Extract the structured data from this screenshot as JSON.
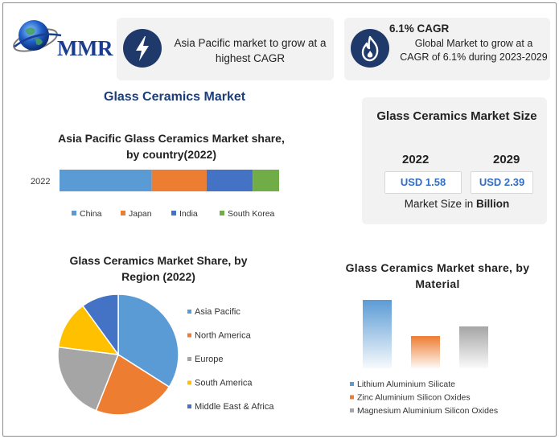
{
  "brand": {
    "logo_text": "MMR"
  },
  "cards": {
    "asia_pacific_text": "Asia Pacific market to grow at a highest CAGR",
    "cagr_title": "6.1% CAGR",
    "cagr_text": "Global Market to grow at a CAGR of 6.1% during 2023-2029",
    "icon_1": "lightning-bolt-icon",
    "icon_2": "flame-icon"
  },
  "main_title": "Glass Ceramics Market",
  "market_size": {
    "title": "Glass Ceramics Market Size",
    "year_1": "2022",
    "year_2": "2029",
    "value_1": "USD 1.58",
    "value_2": "USD 2.39",
    "note_prefix": "Market Size in ",
    "note_unit": "Billion"
  },
  "colors": {
    "blue": "#5b9bd5",
    "orange": "#ed7d31",
    "dark_blue": "#4472c4",
    "green": "#70ad47",
    "gray": "#a5a5a5",
    "yellow": "#ffc000",
    "navy": "#264478"
  },
  "chart_data": [
    {
      "type": "bar",
      "orientation": "horizontal-stacked",
      "title": "Asia Pacific Glass Ceramics Market share, by country(2022)",
      "categories": [
        "2022"
      ],
      "series": [
        {
          "name": "China",
          "values": [
            42
          ],
          "color": "#5b9bd5"
        },
        {
          "name": "Japan",
          "values": [
            25
          ],
          "color": "#ed7d31"
        },
        {
          "name": "India",
          "values": [
            21
          ],
          "color": "#4472c4"
        },
        {
          "name": "South Korea",
          "values": [
            12
          ],
          "color": "#70ad47"
        }
      ],
      "legend": "bottom"
    },
    {
      "type": "pie",
      "title": "Glass Ceramics Market Share, by Region (2022)",
      "labels": [
        "Asia Pacific",
        "North America",
        "Europe",
        "South America",
        "Middle East & Africa"
      ],
      "values": [
        34,
        22,
        21,
        13,
        10
      ],
      "colors": [
        "#5b9bd5",
        "#ed7d31",
        "#a5a5a5",
        "#ffc000",
        "#4472c4"
      ],
      "legend": "right"
    },
    {
      "type": "bar",
      "title": "Glass Ceramics Market share, by Material",
      "categories": [
        "Lithium Aluminium Silicate",
        "Zinc Aluminium Silicon Oxides",
        "Magnesium Aluminium Silicon Oxides"
      ],
      "values": [
        85,
        40,
        52
      ],
      "colors": [
        "#5b9bd5",
        "#ed7d31",
        "#a5a5a5"
      ],
      "legend": "bottom-left"
    }
  ]
}
